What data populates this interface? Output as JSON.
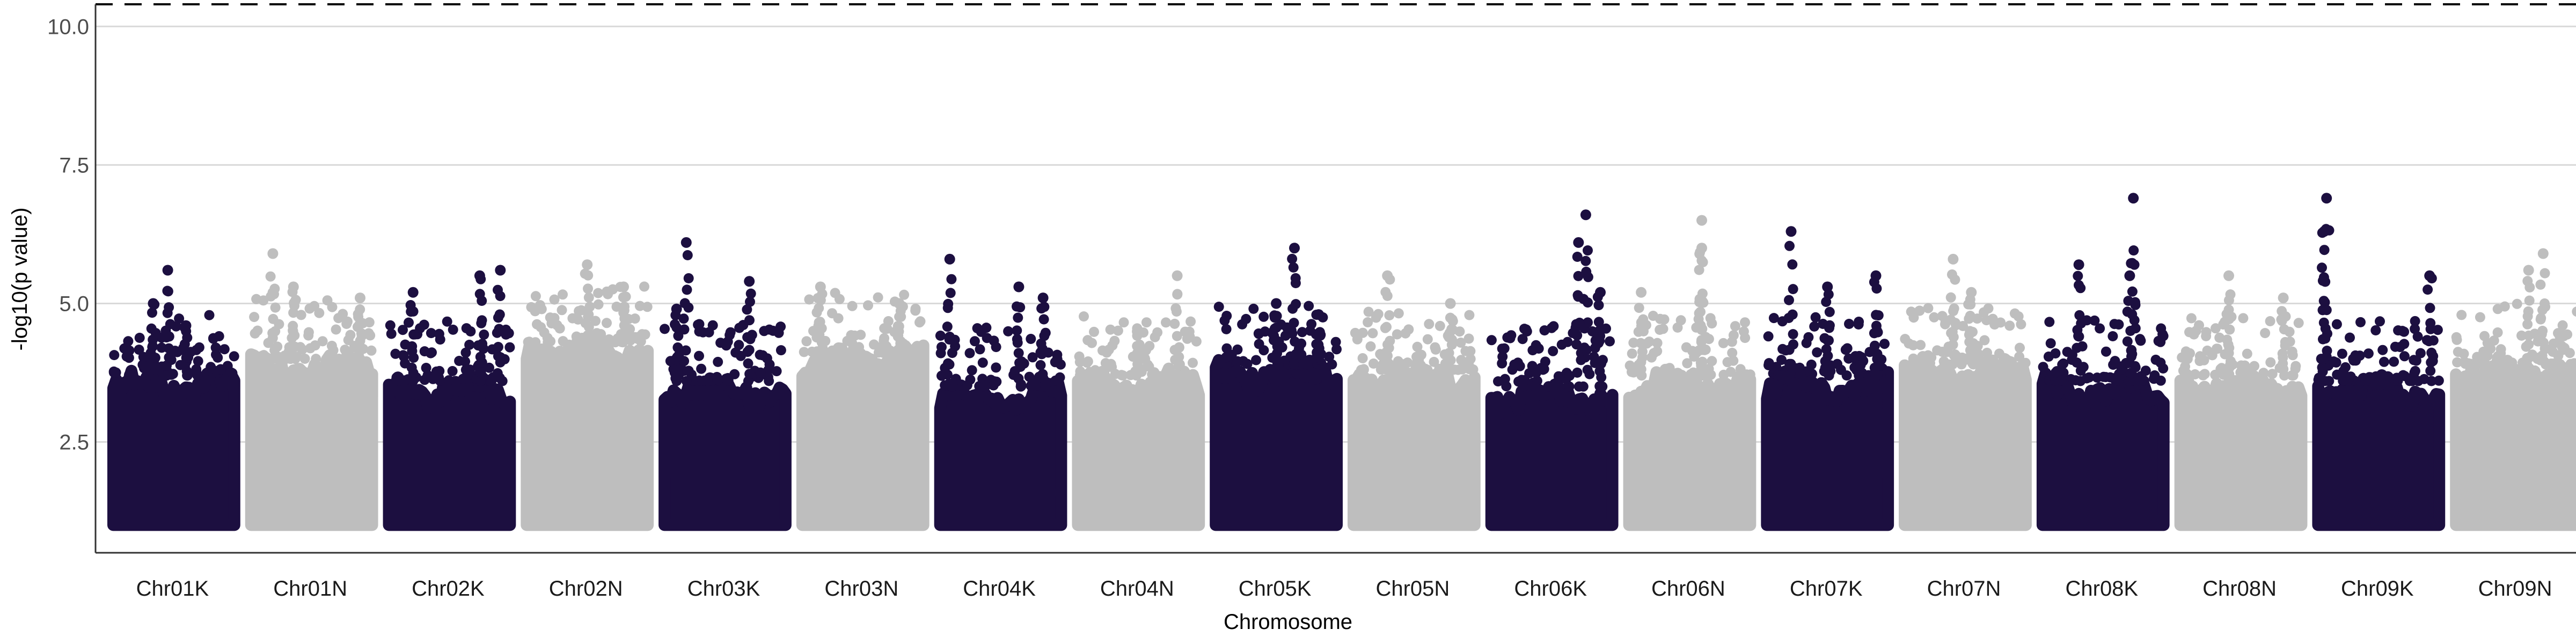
{
  "chart_data": {
    "type": "scatter",
    "subtype": "manhattan",
    "xlabel": "Chromosome",
    "ylabel": "-log10(p value)",
    "ylim": [
      0.5,
      10.4
    ],
    "yticks": [
      2.5,
      5.0,
      7.5,
      10.0
    ],
    "ytick_labels": [
      "2.5",
      "5.0",
      "7.5",
      "10.0"
    ],
    "grid": "horizontal major",
    "threshold_line": {
      "y": 10.4,
      "style": "dashed",
      "color": "#000000"
    },
    "colors": [
      "#1c0f40",
      "#bebebe"
    ],
    "chromosomes": [
      {
        "name": "Chr01K",
        "base_max": 3.7,
        "peaks": [
          [
            0.45,
            5.6
          ],
          [
            0.33,
            5.0
          ],
          [
            0.6,
            4.6
          ]
        ]
      },
      {
        "name": "Chr01N",
        "base_max": 4.0,
        "peaks": [
          [
            0.18,
            5.9
          ],
          [
            0.35,
            5.3
          ],
          [
            0.9,
            5.1
          ]
        ]
      },
      {
        "name": "Chr02K",
        "base_max": 3.6,
        "peaks": [
          [
            0.75,
            5.5
          ],
          [
            0.92,
            5.6
          ],
          [
            0.2,
            5.2
          ]
        ]
      },
      {
        "name": "Chr02N",
        "base_max": 4.3,
        "peaks": [
          [
            0.5,
            5.7
          ],
          [
            0.8,
            5.3
          ]
        ]
      },
      {
        "name": "Chr03K",
        "base_max": 3.6,
        "peaks": [
          [
            0.18,
            6.1
          ],
          [
            0.7,
            5.4
          ],
          [
            0.1,
            4.9
          ]
        ]
      },
      {
        "name": "Chr03N",
        "base_max": 4.1,
        "peaks": [
          [
            0.15,
            5.3
          ],
          [
            0.8,
            5.0
          ]
        ]
      },
      {
        "name": "Chr04K",
        "base_max": 3.5,
        "peaks": [
          [
            0.08,
            5.8
          ],
          [
            0.65,
            5.3
          ],
          [
            0.85,
            5.1
          ]
        ]
      },
      {
        "name": "Chr04N",
        "base_max": 3.7,
        "peaks": [
          [
            0.82,
            5.5
          ],
          [
            0.5,
            4.5
          ]
        ]
      },
      {
        "name": "Chr05K",
        "base_max": 3.9,
        "peaks": [
          [
            0.65,
            6.0
          ],
          [
            0.5,
            5.0
          ],
          [
            0.85,
            4.8
          ]
        ]
      },
      {
        "name": "Chr05N",
        "base_max": 3.8,
        "peaks": [
          [
            0.28,
            5.5
          ],
          [
            0.8,
            5.0
          ]
        ]
      },
      {
        "name": "Chr06K",
        "base_max": 3.5,
        "peaks": [
          [
            0.78,
            6.6
          ],
          [
            0.72,
            6.1
          ],
          [
            0.9,
            5.2
          ]
        ]
      },
      {
        "name": "Chr06N",
        "base_max": 3.7,
        "peaks": [
          [
            0.6,
            6.5
          ],
          [
            0.6,
            6.0
          ],
          [
            0.1,
            5.2
          ]
        ]
      },
      {
        "name": "Chr07K",
        "base_max": 3.7,
        "peaks": [
          [
            0.2,
            6.3
          ],
          [
            0.9,
            5.5
          ],
          [
            0.5,
            5.3
          ]
        ]
      },
      {
        "name": "Chr07N",
        "base_max": 3.9,
        "peaks": [
          [
            0.4,
            5.8
          ],
          [
            0.55,
            5.2
          ]
        ]
      },
      {
        "name": "Chr08K",
        "base_max": 3.6,
        "peaks": [
          [
            0.75,
            6.9
          ],
          [
            0.3,
            5.7
          ],
          [
            0.72,
            5.5
          ]
        ]
      },
      {
        "name": "Chr08N",
        "base_max": 3.7,
        "peaks": [
          [
            0.4,
            5.5
          ],
          [
            0.85,
            5.1
          ]
        ]
      },
      {
        "name": "Chr09K",
        "base_max": 3.6,
        "peaks": [
          [
            0.07,
            6.9
          ],
          [
            0.05,
            6.3
          ],
          [
            0.92,
            5.5
          ]
        ]
      },
      {
        "name": "Chr09N",
        "base_max": 3.9,
        "peaks": [
          [
            0.72,
            5.9
          ],
          [
            0.6,
            5.6
          ]
        ]
      }
    ]
  }
}
